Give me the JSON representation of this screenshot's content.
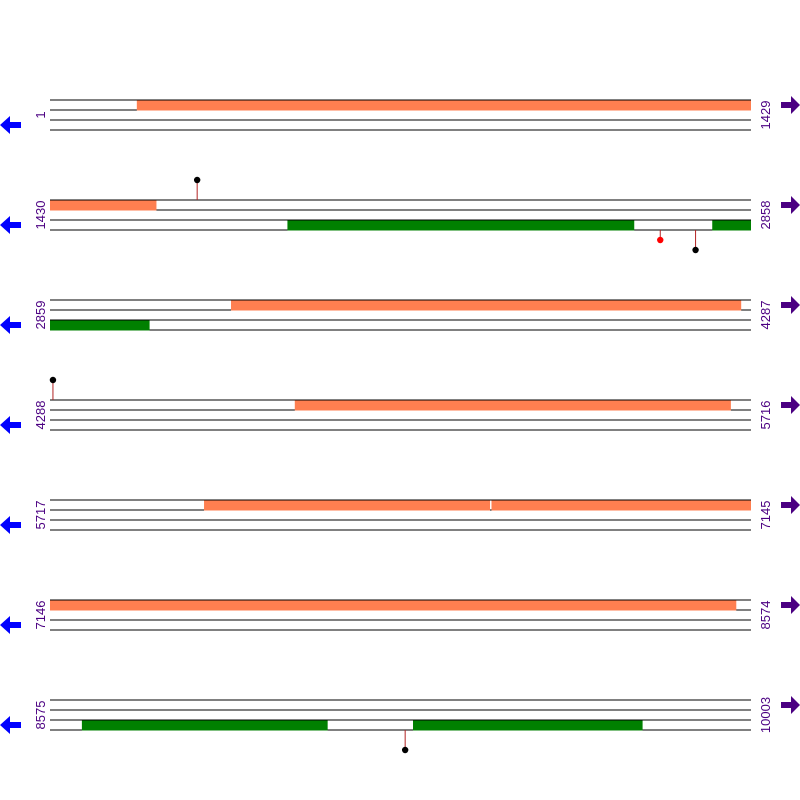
{
  "colors": {
    "forward_feature": "#ff7f50",
    "reverse_feature": "#008000",
    "track_line": "#000000",
    "coord_text": "#4b0082",
    "left_arrow": "#0000ff",
    "right_arrow": "#4b0082",
    "marker_black": "#000000",
    "marker_red": "#ff0000",
    "stem": "#b22222"
  },
  "icons": {
    "left": "arrow-left-icon",
    "right": "arrow-right-icon"
  },
  "rows": [
    {
      "start": 1,
      "end": 1429,
      "start_label": "1",
      "end_label": "1429",
      "features": [
        {
          "strand": "forward",
          "from": 178,
          "to": 1429
        }
      ],
      "markers": []
    },
    {
      "start": 1430,
      "end": 2858,
      "start_label": "1430",
      "end_label": "2858",
      "features": [
        {
          "strand": "forward",
          "from": 1430,
          "to": 1646
        },
        {
          "strand": "reverse",
          "from": 1914,
          "to": 2620
        },
        {
          "strand": "reverse",
          "from": 2780,
          "to": 2858
        }
      ],
      "markers": [
        {
          "pos": 1730,
          "side": "above",
          "color": "black"
        },
        {
          "pos": 2674,
          "side": "below",
          "color": "red"
        },
        {
          "pos": 2746,
          "side": "below",
          "color": "black"
        }
      ]
    },
    {
      "start": 2859,
      "end": 4287,
      "start_label": "2859",
      "end_label": "4287",
      "features": [
        {
          "strand": "forward",
          "from": 3228,
          "to": 4267
        },
        {
          "strand": "reverse",
          "from": 2859,
          "to": 3061
        }
      ],
      "markers": []
    },
    {
      "start": 4288,
      "end": 5716,
      "start_label": "4288",
      "end_label": "5716",
      "features": [
        {
          "strand": "forward",
          "from": 4787,
          "to": 5675
        }
      ],
      "markers": [
        {
          "pos": 4294,
          "side": "above",
          "color": "black"
        }
      ]
    },
    {
      "start": 5717,
      "end": 7145,
      "start_label": "5717",
      "end_label": "7145",
      "features": [
        {
          "strand": "forward",
          "from": 6031,
          "to": 6613
        },
        {
          "strand": "forward",
          "from": 6617,
          "to": 7145
        }
      ],
      "markers": []
    },
    {
      "start": 7146,
      "end": 8574,
      "start_label": "7146",
      "end_label": "8574",
      "features": [
        {
          "strand": "forward",
          "from": 7146,
          "to": 8544
        }
      ],
      "markers": []
    },
    {
      "start": 8575,
      "end": 10003,
      "start_label": "8575",
      "end_label": "10003",
      "features": [
        {
          "strand": "reverse",
          "from": 8640,
          "to": 9140
        },
        {
          "strand": "reverse",
          "from": 9315,
          "to": 9782
        }
      ],
      "markers": [
        {
          "pos": 9299,
          "side": "below",
          "color": "black"
        }
      ]
    }
  ]
}
